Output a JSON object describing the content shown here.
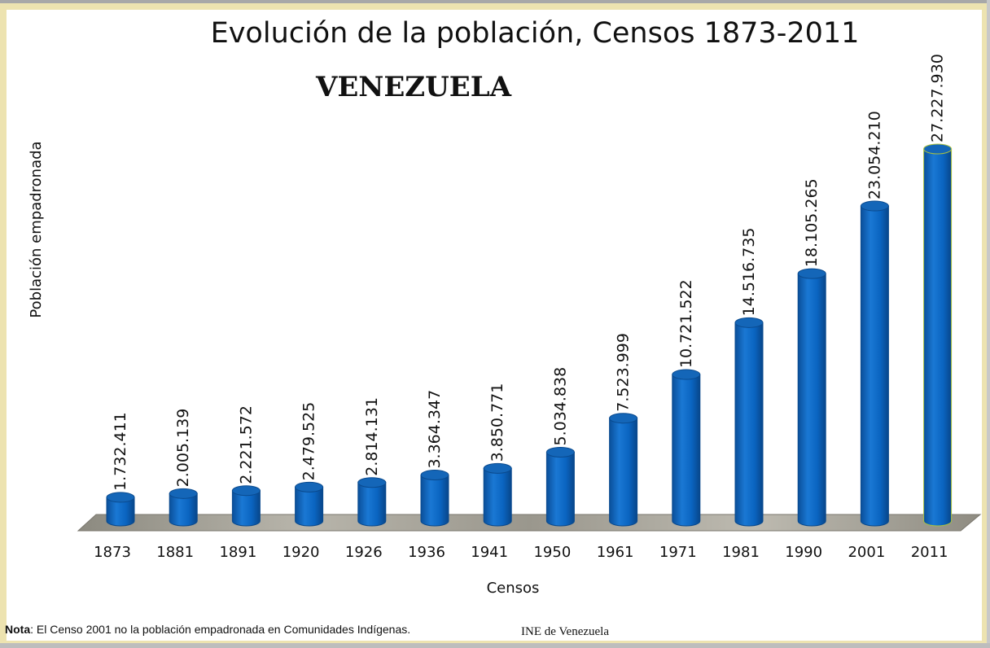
{
  "chart_data": {
    "type": "bar",
    "style": "3d-cylinder",
    "title": "Evolución de la población, Censos 1873-2011",
    "subtitle": "VENEZUELA",
    "xlabel": "Censos",
    "ylabel": "Población empadronada",
    "categories": [
      "1873",
      "1881",
      "1891",
      "1920",
      "1926",
      "1936",
      "1941",
      "1950",
      "1961",
      "1971",
      "1981",
      "1990",
      "2001",
      "2011"
    ],
    "values": [
      1732411,
      2005139,
      2221572,
      2479525,
      2814131,
      3364347,
      3850771,
      5034838,
      7523999,
      10721522,
      14516735,
      18105265,
      23054210,
      27227930
    ],
    "data_labels": [
      "1.732.411",
      "2.005.139",
      "2.221.572",
      "2.479.525",
      "2.814.131",
      "3.364.347",
      "3.850.771",
      "5.034.838",
      "7.523.999",
      "10.721.522",
      "14.516.735",
      "18.105.265",
      "23.054.210",
      "27.227.930"
    ],
    "ylim": [
      0,
      28000000
    ],
    "grid": false,
    "legend": "none",
    "bar_color": "#0a64c0",
    "highlight_bar_outline": "#a8c040"
  },
  "footer": {
    "note_label": "Nota",
    "note_text": ": El Censo 2001 no la población empadronada en Comunidades Indígenas.",
    "source": "INE de Venezuela"
  }
}
